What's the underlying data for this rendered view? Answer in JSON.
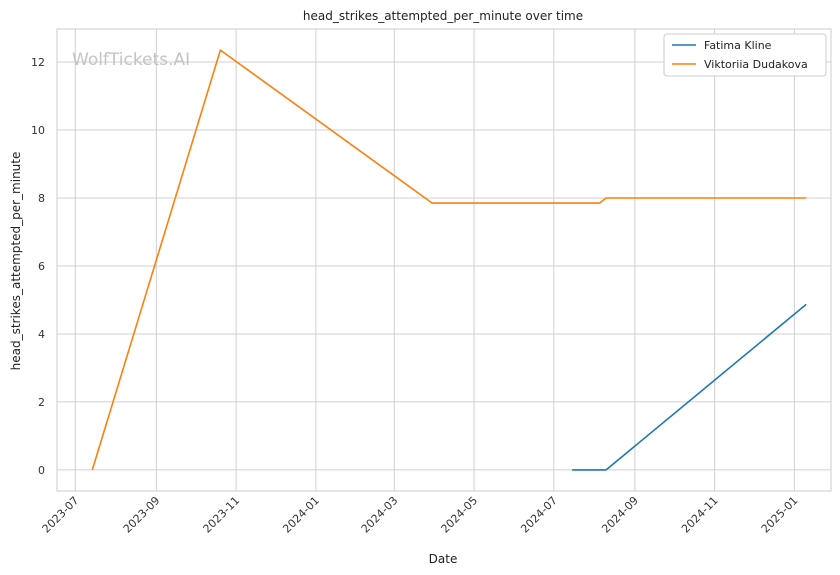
{
  "chart_data": {
    "type": "line",
    "title": "head_strikes_attempted_per_minute over time",
    "xlabel": "Date",
    "ylabel": "head_strikes_attempted_per_minute",
    "watermark": "WolfTickets.AI",
    "x_ticks": [
      "2023-07",
      "2023-09",
      "2023-11",
      "2024-01",
      "2024-03",
      "2024-05",
      "2024-07",
      "2024-09",
      "2024-11",
      "2025-01"
    ],
    "y_ticks": [
      0,
      2,
      4,
      6,
      8,
      10,
      12
    ],
    "xlim": [
      "2023-06-17",
      "2025-01-29"
    ],
    "ylim": [
      -0.62,
      12.97
    ],
    "grid": true,
    "legend_position": "top-right",
    "series": [
      {
        "name": "Fatima Kline",
        "color": "#1f77b4",
        "points": [
          {
            "x": "2024-07-15",
            "y": 0.0
          },
          {
            "x": "2024-08-10",
            "y": 0.0
          },
          {
            "x": "2025-01-10",
            "y": 4.87
          }
        ]
      },
      {
        "name": "Viktoriia Dudakova",
        "color": "#ff7f0e",
        "points": [
          {
            "x": "2023-07-14",
            "y": 0.0
          },
          {
            "x": "2023-10-20",
            "y": 12.35
          },
          {
            "x": "2024-03-30",
            "y": 7.85
          },
          {
            "x": "2024-08-05",
            "y": 7.85
          },
          {
            "x": "2024-08-10",
            "y": 8.0
          },
          {
            "x": "2025-01-10",
            "y": 8.0
          }
        ]
      }
    ]
  }
}
